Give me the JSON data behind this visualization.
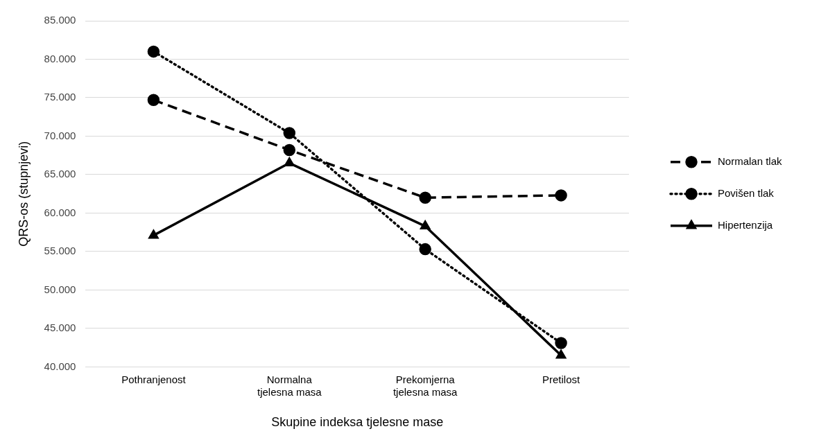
{
  "chart_data": {
    "type": "line",
    "xlabel": "Skupine indeksa tjelesne mase",
    "ylabel": "QRS-os (stupnjevi)",
    "categories": [
      "Pothranjenost",
      "Normalna\ntjelesna masa",
      "Prekomjerna\ntjelesna masa",
      "Pretilost"
    ],
    "series": [
      {
        "name": "Normalan tlak",
        "color": "#000000",
        "values": [
          74.7,
          68.2,
          62.0,
          62.3
        ],
        "line_style": "dashed",
        "marker": "circle"
      },
      {
        "name": "Povišen tlak",
        "color": "#000000",
        "values": [
          81.0,
          70.4,
          55.3,
          43.1
        ],
        "line_style": "dotted",
        "marker": "circle"
      },
      {
        "name": "Hipertenzija",
        "color": "#000000",
        "values": [
          57.1,
          66.5,
          58.3,
          41.5
        ],
        "line_style": "solid",
        "marker": "triangle"
      }
    ],
    "ylim": [
      40,
      85
    ],
    "yticks": [
      {
        "value": 40,
        "label": "40.000"
      },
      {
        "value": 45,
        "label": "45.000"
      },
      {
        "value": 50,
        "label": "50.000"
      },
      {
        "value": 55,
        "label": "55.000"
      },
      {
        "value": 60,
        "label": "60.000"
      },
      {
        "value": 65,
        "label": "65.000"
      },
      {
        "value": 70,
        "label": "70.000"
      },
      {
        "value": 75,
        "label": "75.000"
      },
      {
        "value": 80,
        "label": "80.000"
      },
      {
        "value": 85,
        "label": "85.000"
      }
    ],
    "grid": "y",
    "legend": "right"
  }
}
